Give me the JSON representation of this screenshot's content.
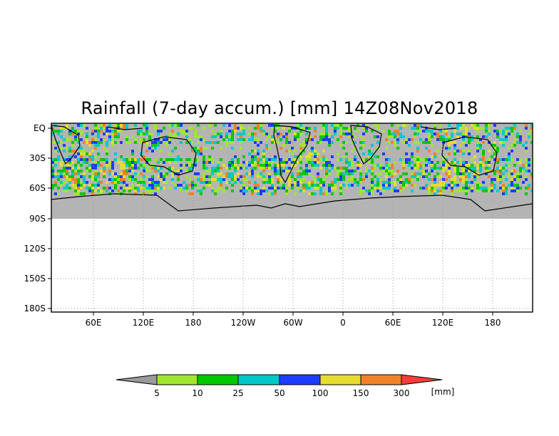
{
  "title": "Rainfall (7-day accum.) [mm] 14Z08Nov2018",
  "y_ticks": [
    "EQ",
    "30S",
    "60S",
    "90S",
    "120S",
    "150S",
    "180S"
  ],
  "x_ticks": [
    "60E",
    "120E",
    "180",
    "120W",
    "60W",
    "0",
    "60E",
    "120E",
    "180"
  ],
  "colorbar": {
    "levels": [
      "5",
      "10",
      "25",
      "50",
      "100",
      "150",
      "300"
    ],
    "unit": "[mm]",
    "colors": [
      "#9a9a9a",
      "#a0e632",
      "#00c800",
      "#00c8c8",
      "#1e3cff",
      "#e6dc32",
      "#f08228",
      "#fa3c3c"
    ]
  },
  "colors": {
    "land_mask": "#b4b4b4",
    "coastline": "#000000",
    "grid": "#a0a0a0"
  }
}
